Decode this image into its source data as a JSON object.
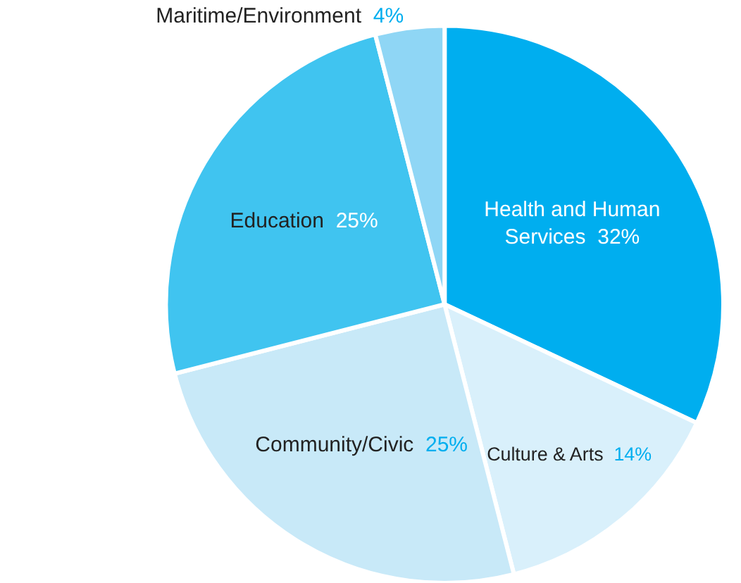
{
  "chart_data": {
    "type": "pie",
    "categories": [
      "Health and Human Services",
      "Culture & Arts",
      "Community/Civic",
      "Education",
      "Maritime/Environment"
    ],
    "values": [
      32,
      14,
      25,
      25,
      4
    ],
    "colors": [
      "#00aeef",
      "#d9f0fb",
      "#c8e9f8",
      "#40c4f0",
      "#8fd6f5"
    ],
    "value_labels": [
      "32%",
      "14%",
      "25%",
      "25%",
      "4%"
    ],
    "legend": false
  }
}
